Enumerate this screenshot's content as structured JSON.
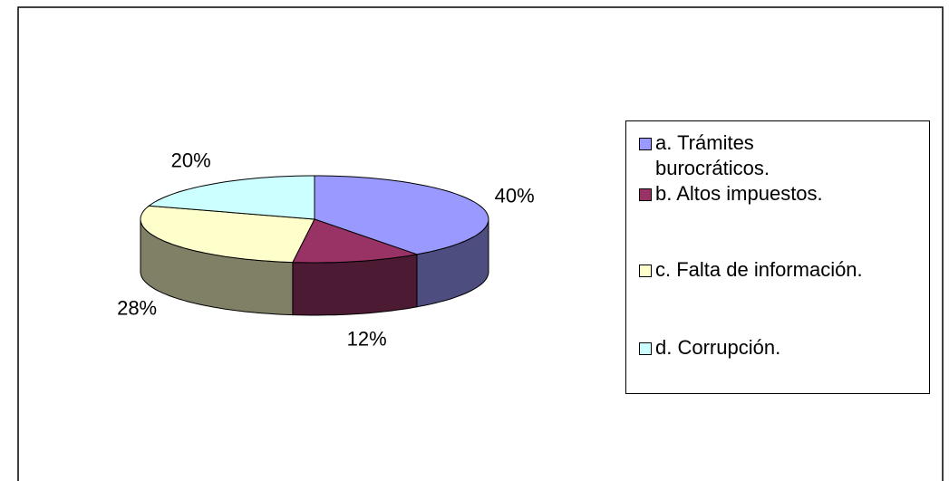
{
  "chart_data": {
    "type": "pie3d",
    "categories": [
      "a. Trámites burocráticos.",
      "b. Altos impuestos.",
      "c. Falta de información.",
      "d. Corrupción."
    ],
    "values": [
      40,
      12,
      28,
      20
    ],
    "value_labels": [
      "40%",
      "12%",
      "28%",
      "20%"
    ],
    "colors": [
      "#9999ff",
      "#993366",
      "#ffffcc",
      "#ccffff"
    ],
    "legend": "right"
  }
}
